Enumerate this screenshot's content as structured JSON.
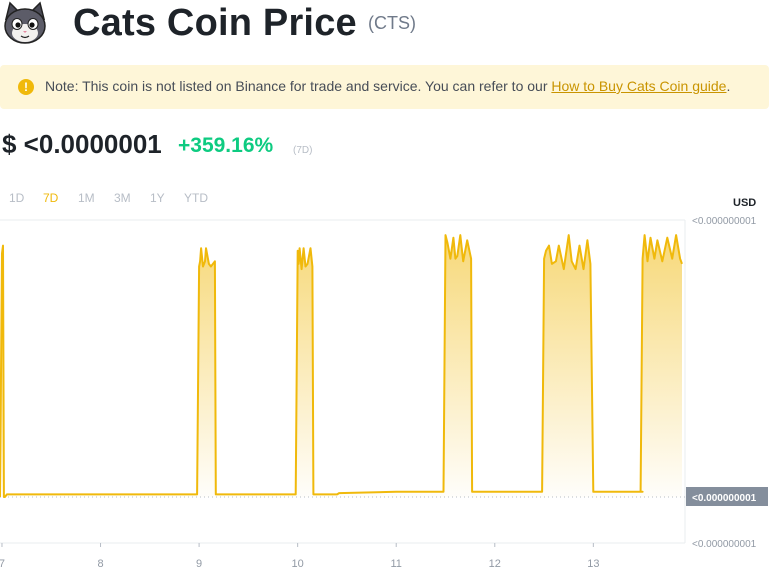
{
  "header": {
    "title": "Cats Coin Price",
    "symbol": "(CTS)",
    "logo_icon": "cat-face-icon"
  },
  "note": {
    "icon": "exclamation-icon",
    "text": "Note: This coin is not listed on Binance for trade and service. You can refer to our ",
    "link_text": "How to Buy Cats Coin guide",
    "suffix": "."
  },
  "price": {
    "value": "$ <0.0000001",
    "change": "+359.16%",
    "change_period": "(7D)"
  },
  "tabs": [
    "1D",
    "7D",
    "1M",
    "3M",
    "1Y",
    "YTD"
  ],
  "active_tab": "7D",
  "currency": "USD",
  "colors": {
    "line": "#f0b90b",
    "positive": "#0ecb81",
    "accent": "#f0b90b"
  },
  "chart_data": {
    "type": "area",
    "x_ticks": [
      "7",
      "8",
      "9",
      "10",
      "11",
      "12",
      "13"
    ],
    "y_ticks": [
      "<0.000000001",
      "<0.000000001",
      "<0.000000001"
    ],
    "current_value_label": "<0.000000001",
    "xlim": [
      6.98,
      13.93
    ],
    "ylim": [
      0,
      1.05
    ],
    "grid": false,
    "x": [
      6.98,
      7.0,
      7.01,
      7.02,
      7.03,
      7.05,
      7.5,
      8.0,
      8.5,
      8.98,
      9.0,
      9.01,
      9.02,
      9.04,
      9.06,
      9.07,
      9.1,
      9.12,
      9.16,
      9.17,
      9.5,
      9.98,
      10.0,
      10.01,
      10.02,
      10.04,
      10.06,
      10.08,
      10.1,
      10.13,
      10.15,
      10.16,
      10.4,
      10.42,
      11.0,
      11.48,
      11.5,
      11.52,
      11.55,
      11.58,
      11.6,
      11.62,
      11.65,
      11.68,
      11.72,
      11.76,
      11.77,
      12.0,
      12.48,
      12.5,
      12.52,
      12.55,
      12.58,
      12.62,
      12.65,
      12.7,
      12.75,
      12.78,
      12.82,
      12.86,
      12.9,
      12.94,
      12.97,
      13.0,
      13.5,
      13.48,
      13.5,
      13.52,
      13.55,
      13.58,
      13.62,
      13.65,
      13.7,
      13.75,
      13.8,
      13.84,
      13.88,
      13.9
    ],
    "y": [
      0,
      0.93,
      0.96,
      0,
      0,
      0.01,
      0.01,
      0.01,
      0.01,
      0.01,
      0.88,
      0.9,
      0.95,
      0.88,
      0.9,
      0.95,
      0.89,
      0.88,
      0.9,
      0.01,
      0.01,
      0.01,
      0.94,
      0.89,
      0.95,
      0.87,
      0.95,
      0.88,
      0.89,
      0.95,
      0.88,
      0.01,
      0.01,
      0.015,
      0.02,
      0.02,
      1.0,
      0.97,
      0.91,
      0.99,
      0.91,
      0.92,
      1.0,
      0.9,
      0.98,
      0.91,
      0.02,
      0.02,
      0.02,
      0.91,
      0.94,
      0.96,
      0.89,
      0.9,
      0.96,
      0.87,
      1.0,
      0.9,
      0.87,
      0.96,
      0.87,
      0.98,
      0.89,
      0.02,
      0.02,
      0.02,
      0.91,
      1.0,
      0.9,
      0.99,
      0.91,
      0.98,
      0.9,
      0.99,
      0.91,
      1.0,
      0.91,
      0.89
    ]
  }
}
